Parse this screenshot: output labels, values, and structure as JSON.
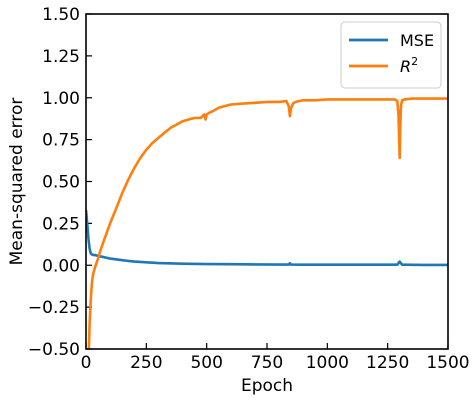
{
  "chart_data": {
    "type": "line",
    "xlabel": "Epoch",
    "ylabel": "Mean-squared error",
    "xlim": [
      0,
      1500
    ],
    "ylim": [
      -0.5,
      1.5
    ],
    "x_ticks": [
      {
        "value": 0,
        "label": "0"
      },
      {
        "value": 250,
        "label": "250"
      },
      {
        "value": 500,
        "label": "500"
      },
      {
        "value": 750,
        "label": "750"
      },
      {
        "value": 1000,
        "label": "1000"
      },
      {
        "value": 1250,
        "label": "1250"
      },
      {
        "value": 1500,
        "label": "1500"
      }
    ],
    "y_ticks": [
      {
        "value": -0.5,
        "label": "−0.50"
      },
      {
        "value": -0.25,
        "label": "−0.25"
      },
      {
        "value": 0.0,
        "label": "0.00"
      },
      {
        "value": 0.25,
        "label": "0.25"
      },
      {
        "value": 0.5,
        "label": "0.50"
      },
      {
        "value": 0.75,
        "label": "0.75"
      },
      {
        "value": 1.0,
        "label": "1.00"
      },
      {
        "value": 1.25,
        "label": "1.25"
      },
      {
        "value": 1.5,
        "label": "1.50"
      }
    ],
    "grid": false,
    "legend_position": "top-right",
    "series": [
      {
        "name": "MSE",
        "legend_base": "MSE",
        "legend_sup": "",
        "color": "#1f77b4",
        "x": [
          0,
          5,
          10,
          15,
          20,
          25,
          30,
          40,
          50,
          75,
          100,
          150,
          200,
          300,
          400,
          500,
          600,
          700,
          800,
          840,
          845,
          850,
          900,
          1000,
          1100,
          1200,
          1290,
          1300,
          1305,
          1310,
          1320,
          1400,
          1500
        ],
        "y": [
          0.33,
          0.25,
          0.16,
          0.1,
          0.07,
          0.064,
          0.062,
          0.06,
          0.056,
          0.048,
          0.04,
          0.03,
          0.022,
          0.013,
          0.009,
          0.007,
          0.006,
          0.005,
          0.004,
          0.004,
          0.012,
          0.004,
          0.003,
          0.003,
          0.003,
          0.003,
          0.003,
          0.022,
          0.012,
          0.003,
          0.003,
          0.002,
          0.002
        ]
      },
      {
        "name": "R2",
        "legend_base": "R",
        "legend_sup": "2",
        "color": "#ff7f0e",
        "x": [
          12,
          15,
          20,
          25,
          30,
          40,
          50,
          60,
          75,
          100,
          125,
          150,
          175,
          200,
          225,
          250,
          275,
          300,
          325,
          350,
          375,
          400,
          425,
          450,
          475,
          490,
          495,
          500,
          510,
          525,
          550,
          575,
          600,
          650,
          700,
          750,
          800,
          830,
          840,
          845,
          850,
          860,
          880,
          900,
          950,
          1000,
          1050,
          1100,
          1150,
          1200,
          1250,
          1280,
          1290,
          1295,
          1300,
          1302,
          1305,
          1310,
          1320,
          1350,
          1400,
          1450,
          1500
        ],
        "y": [
          -0.5,
          -0.35,
          -0.2,
          -0.1,
          -0.05,
          0.0,
          0.04,
          0.09,
          0.15,
          0.25,
          0.34,
          0.43,
          0.51,
          0.58,
          0.64,
          0.69,
          0.73,
          0.76,
          0.79,
          0.82,
          0.84,
          0.86,
          0.87,
          0.88,
          0.88,
          0.9,
          0.87,
          0.9,
          0.91,
          0.92,
          0.94,
          0.95,
          0.96,
          0.965,
          0.97,
          0.975,
          0.975,
          0.98,
          0.95,
          0.89,
          0.94,
          0.97,
          0.98,
          0.985,
          0.985,
          0.99,
          0.99,
          0.99,
          0.99,
          0.99,
          0.99,
          0.99,
          0.98,
          0.9,
          0.64,
          0.8,
          0.95,
          0.985,
          0.99,
          0.995,
          0.995,
          0.995,
          0.995
        ]
      }
    ]
  }
}
